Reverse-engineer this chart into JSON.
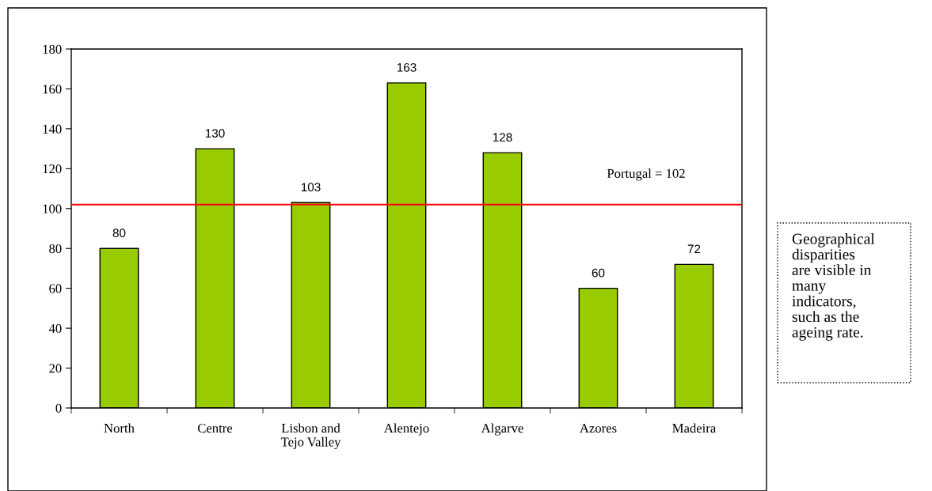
{
  "chart_data": {
    "type": "bar",
    "categories": [
      "North",
      "Centre",
      "Lisbon and Tejo Valley",
      "Alentejo",
      "Algarve",
      "Azores",
      "Madeira"
    ],
    "values": [
      80,
      130,
      103,
      163,
      128,
      60,
      72
    ],
    "color": "#99cc00",
    "ylim": [
      0,
      180
    ],
    "yticks": [
      0,
      20,
      40,
      60,
      80,
      100,
      120,
      140,
      160,
      180
    ],
    "grid": false,
    "legend": false,
    "data_labels": true,
    "ref_lines": [
      {
        "axis": "y",
        "value": 102,
        "label": "Portugal = 102",
        "color": "#ff0000",
        "line_style": "solid"
      }
    ],
    "annotations": [
      "Geographical disparities are visible in many indicators, such as the ageing rate."
    ]
  }
}
